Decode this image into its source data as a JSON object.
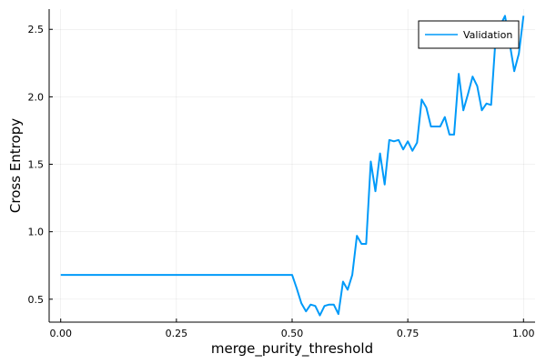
{
  "chart_data": {
    "type": "line",
    "title": "",
    "xlabel": "merge_purity_threshold",
    "ylabel": "Cross Entropy",
    "xlim": [
      -0.025,
      1.025
    ],
    "ylim": [
      0.33,
      2.65
    ],
    "x_ticks": [
      0.0,
      0.25,
      0.5,
      0.75,
      1.0
    ],
    "x_tick_labels": [
      "0.00",
      "0.25",
      "0.50",
      "0.75",
      "1.00"
    ],
    "y_ticks": [
      0.5,
      1.0,
      1.5,
      2.0,
      2.5
    ],
    "y_tick_labels": [
      "0.5",
      "1.0",
      "1.5",
      "2.0",
      "2.5"
    ],
    "grid": true,
    "legend_position": "top-right",
    "series": [
      {
        "name": "Validation",
        "color": "#009af9",
        "x": [
          0.0,
          0.05,
          0.1,
          0.15,
          0.2,
          0.25,
          0.3,
          0.35,
          0.4,
          0.45,
          0.5,
          0.51,
          0.52,
          0.53,
          0.54,
          0.55,
          0.56,
          0.57,
          0.58,
          0.59,
          0.6,
          0.61,
          0.62,
          0.63,
          0.64,
          0.65,
          0.66,
          0.67,
          0.68,
          0.69,
          0.7,
          0.71,
          0.72,
          0.73,
          0.74,
          0.75,
          0.76,
          0.77,
          0.78,
          0.79,
          0.8,
          0.81,
          0.82,
          0.83,
          0.84,
          0.85,
          0.86,
          0.87,
          0.88,
          0.89,
          0.9,
          0.91,
          0.92,
          0.93,
          0.94,
          0.95,
          0.96,
          0.97,
          0.98,
          0.99,
          1.0
        ],
        "values": [
          0.68,
          0.68,
          0.68,
          0.68,
          0.68,
          0.68,
          0.68,
          0.68,
          0.68,
          0.68,
          0.68,
          0.58,
          0.47,
          0.41,
          0.46,
          0.45,
          0.38,
          0.45,
          0.46,
          0.46,
          0.39,
          0.63,
          0.57,
          0.68,
          0.97,
          0.91,
          0.91,
          1.52,
          1.3,
          1.58,
          1.35,
          1.68,
          1.67,
          1.68,
          1.61,
          1.67,
          1.6,
          1.66,
          1.98,
          1.92,
          1.78,
          1.78,
          1.78,
          1.85,
          1.72,
          1.72,
          2.17,
          1.9,
          2.02,
          2.15,
          2.08,
          1.9,
          1.95,
          1.94,
          2.45,
          2.53,
          2.6,
          2.4,
          2.19,
          2.32,
          2.6
        ]
      }
    ]
  }
}
